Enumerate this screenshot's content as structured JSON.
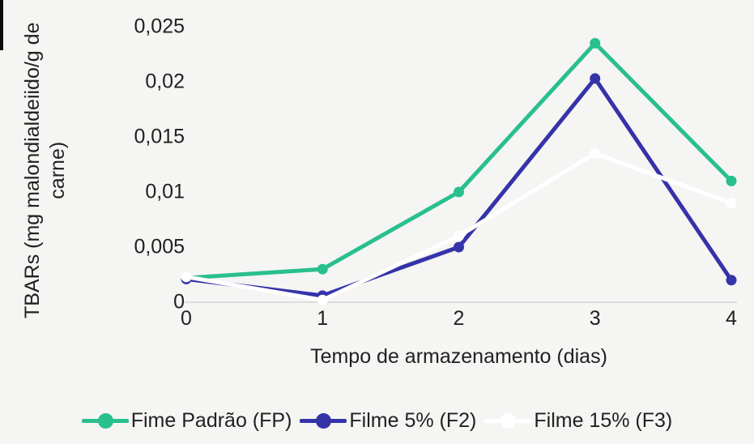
{
  "chart_data": {
    "type": "line",
    "x": [
      0,
      1,
      2,
      3,
      4
    ],
    "x_tick_labels": [
      "0",
      "1",
      "2",
      "3",
      "4"
    ],
    "y_ticks": {
      "labels": [
        "0",
        "0,005",
        "0,01",
        "0,015",
        "0,02",
        "0,025"
      ],
      "values": [
        0,
        0.005,
        0.01,
        0.015,
        0.02,
        0.025
      ]
    },
    "ylim": [
      0,
      0.025
    ],
    "xlabel": "Tempo de armazenamento (dias)",
    "ylabel": "TBARs (mg malondialdeiido/g de carne)",
    "grid": false,
    "legend_position": "bottom",
    "series": [
      {
        "name": "Fime Padrão (FP)",
        "color": "#29bf8f",
        "values": [
          0.0022,
          0.003,
          0.01,
          0.0235,
          0.011
        ]
      },
      {
        "name": "Filme 5% (F2)",
        "color": "#3533a8",
        "values": [
          0.0021,
          0.0006,
          0.005,
          0.0203,
          0.002
        ]
      },
      {
        "name": "Filme 15% (F3)",
        "color": "#ffffff",
        "values": [
          0.0023,
          0.0002,
          0.006,
          0.0135,
          0.009
        ]
      }
    ]
  },
  "colors": {
    "background": "#f5f5f3",
    "axis_line": "#dcdcdc",
    "text": "#212121"
  }
}
